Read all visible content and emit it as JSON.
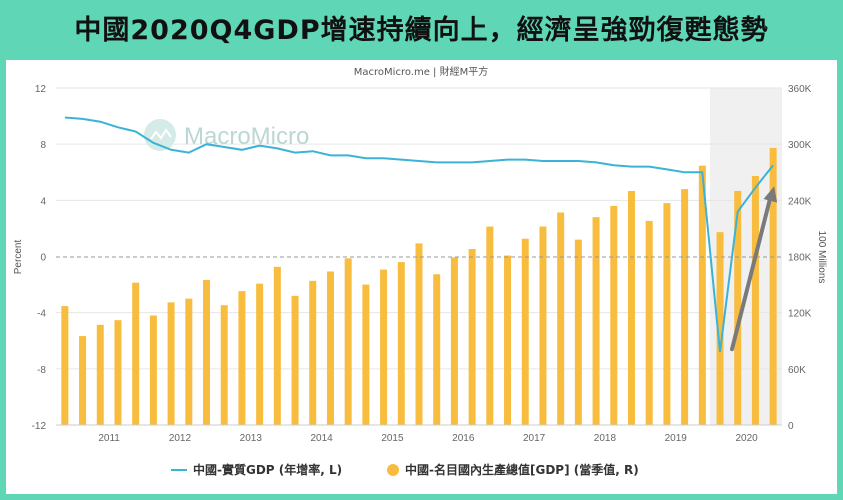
{
  "title": "中國2020Q4GDP增速持續向上，經濟呈強勁復甦態勢",
  "chart_data": {
    "type": "bar+line",
    "subtitle": "MacroMicro.me | 財經M平方",
    "watermark": "MacroMicro",
    "y_left": {
      "label": "Percent",
      "min": -12,
      "max": 12,
      "ticks": [
        12,
        8,
        4,
        0,
        -4,
        -8,
        -12
      ]
    },
    "y_right": {
      "label": "100 Millions",
      "min": 0,
      "max": 360000,
      "ticks": [
        0,
        60000,
        120000,
        180000,
        240000,
        300000,
        360000
      ],
      "tick_labels": [
        "0",
        "60K",
        "120K",
        "180K",
        "240K",
        "300K",
        "360K"
      ]
    },
    "x_tick_labels": [
      "2011",
      "2012",
      "2013",
      "2014",
      "2015",
      "2016",
      "2017",
      "2018",
      "2019",
      "2020"
    ],
    "quarters": [
      "2010Q4",
      "2011Q1",
      "2011Q2",
      "2011Q3",
      "2011Q4",
      "2012Q1",
      "2012Q2",
      "2012Q3",
      "2012Q4",
      "2013Q1",
      "2013Q2",
      "2013Q3",
      "2013Q4",
      "2014Q1",
      "2014Q2",
      "2014Q3",
      "2014Q4",
      "2015Q1",
      "2015Q2",
      "2015Q3",
      "2015Q4",
      "2016Q1",
      "2016Q2",
      "2016Q3",
      "2016Q4",
      "2017Q1",
      "2017Q2",
      "2017Q3",
      "2017Q4",
      "2018Q1",
      "2018Q2",
      "2018Q3",
      "2018Q4",
      "2019Q1",
      "2019Q2",
      "2019Q3",
      "2019Q4",
      "2020Q1",
      "2020Q2",
      "2020Q3",
      "2020Q4"
    ],
    "series": [
      {
        "name": "中國-名目國內生產總值[GDP] (當季值, R)",
        "type": "bar",
        "axis": "right",
        "color": "#f8bd3e",
        "values": [
          127000,
          95000,
          107000,
          112000,
          152000,
          117000,
          131000,
          135000,
          155000,
          128000,
          143000,
          151000,
          169000,
          138000,
          154000,
          164000,
          178000,
          150000,
          166000,
          174000,
          194000,
          161000,
          179000,
          188000,
          212000,
          181000,
          199000,
          212000,
          227000,
          198000,
          222000,
          234000,
          250000,
          218000,
          237000,
          252000,
          277000,
          206000,
          250000,
          266000,
          296000
        ]
      },
      {
        "name": "中國-實質GDP (年增率, L)",
        "type": "line",
        "axis": "left",
        "color": "#3ab3d6",
        "values": [
          9.9,
          9.8,
          9.6,
          9.2,
          8.9,
          8.1,
          7.6,
          7.4,
          8.0,
          7.8,
          7.6,
          7.9,
          7.7,
          7.4,
          7.5,
          7.2,
          7.2,
          7.0,
          7.0,
          6.9,
          6.8,
          6.7,
          6.7,
          6.7,
          6.8,
          6.9,
          6.9,
          6.8,
          6.8,
          6.8,
          6.7,
          6.5,
          6.4,
          6.4,
          6.2,
          6.0,
          6.0,
          -6.8,
          3.2,
          4.9,
          6.5
        ]
      }
    ],
    "annotation": "arrow",
    "annotation_color": "#7a7a7a",
    "legend_position": "bottom"
  }
}
